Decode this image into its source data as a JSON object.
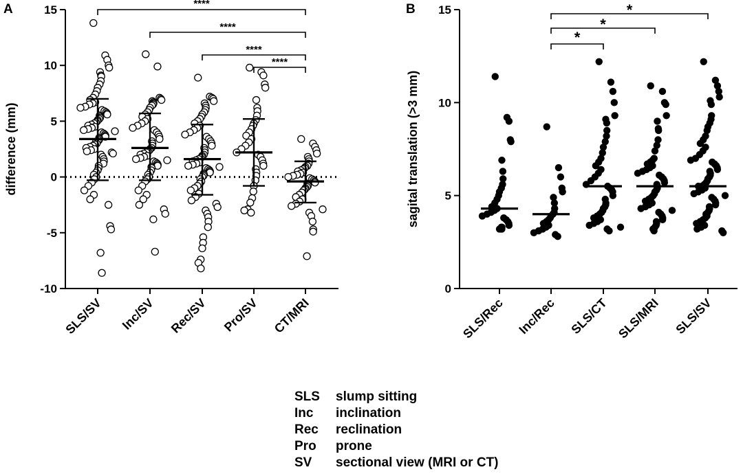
{
  "chart_data": [
    {
      "panel_label": "A",
      "type": "scatter",
      "title": "",
      "xlabel": "",
      "ylabel": "difference (mm)",
      "ylim": [
        -10,
        15
      ],
      "yticks": [
        15,
        10,
        5,
        0,
        -5,
        -10
      ],
      "ytick_labels": [
        "15",
        "10",
        "5",
        "0",
        "-5",
        "-10"
      ],
      "categories": [
        "SLS/SV",
        "Inc/SV",
        "Rec/SV",
        "Pro/SV",
        "CT/MRI"
      ],
      "marker": "open-circle",
      "reference_line": 0,
      "series": [
        {
          "name": "SLS/SV",
          "mean": 3.4,
          "sd_low": -0.3,
          "sd_high": 7.0,
          "values": [
            13.8,
            10.9,
            10.5,
            10.0,
            9.8,
            9.4,
            9.1,
            9.0,
            8.6,
            8.3,
            8.0,
            7.7,
            7.4,
            7.1,
            6.9,
            6.7,
            6.6,
            6.5,
            6.3,
            6.2,
            6.0,
            5.9,
            5.8,
            5.7,
            5.6,
            5.5,
            5.4,
            5.3,
            5.2,
            5.1,
            5.0,
            4.9,
            4.8,
            4.7,
            4.6,
            4.5,
            4.4,
            4.3,
            4.2,
            4.1,
            4.0,
            3.9,
            3.8,
            3.7,
            3.6,
            3.5,
            3.4,
            3.3,
            3.2,
            3.1,
            3.0,
            2.9,
            2.8,
            2.7,
            2.6,
            2.5,
            2.4,
            2.3,
            2.2,
            2.1,
            2.0,
            1.8,
            1.6,
            1.4,
            1.2,
            1.0,
            0.8,
            0.6,
            0.4,
            0.2,
            0.0,
            -0.2,
            -0.5,
            -0.8,
            -1.2,
            -1.6,
            -2.0,
            -2.5,
            -4.4,
            -4.7,
            -6.8,
            -8.6
          ]
        },
        {
          "name": "Inc/SV",
          "mean": 2.6,
          "sd_low": -0.3,
          "sd_high": 5.7,
          "values": [
            11.0,
            9.9,
            7.1,
            7.0,
            6.9,
            6.8,
            6.7,
            6.6,
            6.5,
            6.4,
            6.2,
            6.0,
            5.8,
            5.6,
            5.4,
            5.2,
            5.0,
            4.8,
            4.6,
            4.4,
            4.2,
            4.0,
            3.8,
            3.6,
            3.4,
            3.2,
            3.0,
            2.8,
            2.6,
            2.5,
            2.4,
            2.3,
            2.2,
            2.1,
            2.0,
            1.9,
            1.8,
            1.7,
            1.6,
            1.5,
            1.4,
            1.3,
            1.2,
            1.1,
            1.0,
            0.9,
            0.8,
            0.6,
            0.4,
            0.2,
            0.0,
            -0.2,
            -0.4,
            -0.8,
            -1.2,
            -1.6,
            -2.0,
            -2.5,
            -2.9,
            -3.3,
            -3.8,
            -6.7
          ]
        },
        {
          "name": "Rec/SV",
          "mean": 1.6,
          "sd_low": -1.6,
          "sd_high": 4.7,
          "values": [
            8.9,
            7.2,
            7.1,
            7.0,
            6.8,
            6.6,
            6.4,
            6.2,
            6.0,
            5.8,
            5.6,
            5.4,
            5.2,
            5.0,
            4.8,
            4.6,
            4.4,
            4.2,
            4.0,
            3.8,
            3.6,
            3.4,
            3.2,
            3.0,
            2.8,
            2.6,
            2.4,
            2.2,
            2.0,
            1.9,
            1.8,
            1.7,
            1.6,
            1.5,
            1.4,
            1.3,
            1.2,
            1.1,
            1.0,
            0.9,
            0.8,
            0.7,
            0.6,
            0.5,
            0.4,
            0.3,
            0.2,
            0.1,
            0.0,
            -0.2,
            -0.4,
            -0.6,
            -0.8,
            -1.0,
            -1.2,
            -1.5,
            -1.8,
            -2.1,
            -2.4,
            -2.7,
            -3.0,
            -3.3,
            -3.6,
            -4.0,
            -4.5,
            -5.4,
            -5.9,
            -6.4,
            -7.4,
            -7.7,
            -8.2
          ]
        },
        {
          "name": "Pro/SV",
          "mean": 2.2,
          "sd_low": -0.8,
          "sd_high": 5.2,
          "values": [
            9.8,
            9.4,
            9.1,
            8.3,
            8.0,
            6.9,
            6.2,
            5.9,
            5.5,
            5.1,
            4.8,
            4.6,
            4.3,
            4.0,
            3.7,
            3.4,
            3.1,
            2.8,
            2.5,
            2.2,
            2.0,
            1.8,
            1.5,
            1.2,
            1.0,
            0.7,
            0.4,
            0.1,
            -0.3,
            -0.8,
            -1.3,
            -1.9,
            -2.3,
            -2.9,
            -3.0,
            -3.2
          ]
        },
        {
          "name": "CT/MRI",
          "mean": -0.4,
          "sd_low": -2.3,
          "sd_high": 1.4,
          "values": [
            3.4,
            3.0,
            2.7,
            2.4,
            2.1,
            1.8,
            1.6,
            1.4,
            1.2,
            1.0,
            0.9,
            0.8,
            0.7,
            0.6,
            0.5,
            0.4,
            0.3,
            0.2,
            0.1,
            0.0,
            -0.1,
            -0.2,
            -0.3,
            -0.4,
            -0.5,
            -0.6,
            -0.7,
            -0.8,
            -0.9,
            -1.0,
            -1.1,
            -1.2,
            -1.4,
            -1.6,
            -1.8,
            -2.0,
            -2.2,
            -2.4,
            -2.6,
            -2.9,
            -3.2,
            -3.5,
            -4.0,
            -4.7,
            -4.9,
            -7.1
          ]
        }
      ],
      "significance": [
        {
          "from": "SLS/SV",
          "to": "CT/MRI",
          "label": "****"
        },
        {
          "from": "Inc/SV",
          "to": "CT/MRI",
          "label": "****"
        },
        {
          "from": "Rec/SV",
          "to": "CT/MRI",
          "label": "****"
        },
        {
          "from": "Pro/SV",
          "to": "CT/MRI",
          "label": "****"
        }
      ]
    },
    {
      "panel_label": "B",
      "type": "scatter",
      "title": "",
      "xlabel": "",
      "ylabel": "sagital translation (>3 mm)",
      "ylim": [
        0,
        15
      ],
      "yticks": [
        15,
        10,
        5,
        0
      ],
      "ytick_labels": [
        "15",
        "10",
        "5",
        "0"
      ],
      "categories": [
        "SLS/Rec",
        "Inc/Rec",
        "SLS/CT",
        "SLS/MRI",
        "SLS/SV"
      ],
      "marker": "filled-circle",
      "series": [
        {
          "name": "SLS/Rec",
          "median": 4.3,
          "values": [
            11.4,
            9.2,
            9.0,
            8.0,
            7.9,
            6.9,
            6.3,
            5.9,
            5.6,
            5.4,
            5.2,
            5.0,
            4.8,
            4.6,
            4.4,
            4.3,
            4.2,
            4.1,
            4.0,
            3.9,
            3.8,
            3.7,
            3.6,
            3.5,
            3.4,
            3.3,
            3.3,
            3.2,
            3.2,
            3.2
          ]
        },
        {
          "name": "Inc/Rec",
          "median": 4.0,
          "values": [
            8.7,
            6.5,
            6.0,
            5.4,
            5.2,
            4.9,
            4.6,
            4.3,
            4.1,
            4.0,
            3.9,
            3.8,
            3.7,
            3.6,
            3.5,
            3.4,
            3.3,
            3.2,
            3.1,
            3.0,
            2.9,
            2.8
          ]
        },
        {
          "name": "SLS/CT",
          "median": 5.5,
          "values": [
            12.2,
            11.1,
            10.6,
            10.0,
            9.3,
            9.1,
            8.9,
            8.5,
            8.2,
            7.9,
            7.6,
            7.3,
            7.0,
            6.8,
            6.6,
            6.4,
            6.2,
            6.0,
            5.8,
            5.6,
            5.5,
            5.4,
            5.3,
            5.2,
            5.0,
            4.8,
            4.6,
            4.5,
            4.4,
            4.3,
            4.2,
            4.1,
            4.0,
            3.9,
            3.8,
            3.7,
            3.6,
            3.5,
            3.4,
            3.3,
            3.2,
            3.1
          ]
        },
        {
          "name": "SLS/MRI",
          "median": 5.5,
          "values": [
            10.9,
            10.6,
            10.0,
            9.9,
            9.3,
            9.0,
            8.6,
            8.5,
            8.0,
            7.7,
            7.4,
            7.0,
            6.9,
            6.8,
            6.7,
            6.6,
            6.5,
            6.4,
            6.3,
            6.2,
            6.1,
            6.0,
            5.9,
            5.8,
            5.7,
            5.6,
            5.5,
            5.4,
            5.3,
            5.2,
            5.1,
            5.0,
            4.9,
            4.8,
            4.7,
            4.6,
            4.5,
            4.4,
            4.3,
            4.2,
            4.1,
            4.0,
            3.9,
            3.8,
            3.7,
            3.6,
            3.5,
            3.4,
            3.3,
            3.2,
            3.1
          ]
        },
        {
          "name": "SLS/SV",
          "median": 5.5,
          "values": [
            12.2,
            11.2,
            10.9,
            10.6,
            10.3,
            10.1,
            9.9,
            9.3,
            9.1,
            8.9,
            8.7,
            8.5,
            8.2,
            8.0,
            7.8,
            7.6,
            7.4,
            7.2,
            7.0,
            6.9,
            6.8,
            6.7,
            6.6,
            6.5,
            6.4,
            6.3,
            6.2,
            6.1,
            6.0,
            5.9,
            5.8,
            5.7,
            5.6,
            5.5,
            5.5,
            5.4,
            5.3,
            5.2,
            5.1,
            5.0,
            4.9,
            4.8,
            4.7,
            4.6,
            4.5,
            4.4,
            4.3,
            4.2,
            4.1,
            4.0,
            3.9,
            3.8,
            3.7,
            3.6,
            3.5,
            3.4,
            3.3,
            3.2,
            3.1,
            3.0
          ]
        }
      ],
      "significance": [
        {
          "from": "Inc/Rec",
          "to": "SLS/CT",
          "label": "*"
        },
        {
          "from": "Inc/Rec",
          "to": "SLS/MRI",
          "label": "*"
        },
        {
          "from": "Inc/Rec",
          "to": "SLS/SV",
          "label": "*"
        }
      ]
    }
  ],
  "legend": [
    {
      "abbr": "SLS",
      "desc": "slump sitting"
    },
    {
      "abbr": "Inc",
      "desc": "inclination"
    },
    {
      "abbr": "Rec",
      "desc": "reclination"
    },
    {
      "abbr": "Pro",
      "desc": "prone"
    },
    {
      "abbr": "SV",
      "desc": "sectional view (MRI or CT)"
    }
  ],
  "colors": {
    "ink": "#000000",
    "background": "#ffffff"
  }
}
